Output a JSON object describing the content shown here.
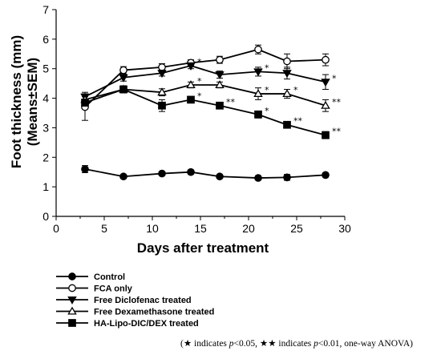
{
  "chart_data": {
    "type": "line",
    "xlabel": "Days after treatment",
    "ylabel_line1": "Foot thickness (mm)",
    "ylabel_line2": "(Means±SEM)",
    "xlim": [
      0,
      30
    ],
    "ylim": [
      0,
      7
    ],
    "xticks": [
      "0",
      "5",
      "10",
      "15",
      "20",
      "25",
      "30"
    ],
    "yticks": [
      "0",
      "1",
      "2",
      "3",
      "4",
      "5",
      "6",
      "7"
    ],
    "grid": false,
    "legend_position": "bottom-left",
    "x": [
      3,
      7,
      11,
      14,
      17,
      21,
      24,
      28
    ],
    "series": [
      {
        "name": "Control",
        "marker": "filled-circle",
        "values": [
          1.6,
          1.35,
          1.45,
          1.5,
          1.35,
          1.3,
          1.32,
          1.4
        ],
        "errors": [
          0.12,
          0.06,
          0.06,
          0.07,
          0.06,
          0.06,
          0.1,
          0.07
        ],
        "stars": [
          "",
          "",
          "",
          "",
          "",
          "",
          "",
          ""
        ]
      },
      {
        "name": "FCA only",
        "marker": "open-circle",
        "values": [
          3.7,
          4.95,
          5.05,
          5.2,
          5.3,
          5.65,
          5.25,
          5.3
        ],
        "errors": [
          0.45,
          0.12,
          0.12,
          0.1,
          0.12,
          0.15,
          0.25,
          0.2
        ],
        "stars": [
          "",
          "",
          "",
          "",
          "",
          "",
          "",
          ""
        ]
      },
      {
        "name": "Free Diclofenac treated",
        "marker": "filled-triangle-down",
        "values": [
          4.05,
          4.7,
          4.85,
          5.1,
          4.8,
          4.9,
          4.85,
          4.55
        ],
        "errors": [
          0.15,
          0.12,
          0.1,
          0.1,
          0.12,
          0.15,
          0.2,
          0.25
        ],
        "stars": [
          "",
          "",
          "",
          "*",
          "",
          "*",
          "",
          "*"
        ]
      },
      {
        "name": "Free Dexamethasone treated",
        "marker": "open-triangle-up",
        "values": [
          3.95,
          4.3,
          4.2,
          4.45,
          4.45,
          4.15,
          4.15,
          3.75
        ],
        "errors": [
          0.1,
          0.12,
          0.12,
          0.1,
          0.1,
          0.2,
          0.15,
          0.2
        ],
        "stars": [
          "",
          "",
          "",
          "*",
          "",
          "*",
          "*",
          "**"
        ]
      },
      {
        "name": "HA-Lipo-DIC/DEX treated",
        "marker": "filled-square",
        "values": [
          3.85,
          4.3,
          3.75,
          3.95,
          3.75,
          3.45,
          3.1,
          2.75
        ],
        "errors": [
          0.12,
          0.12,
          0.2,
          0.1,
          0.1,
          0.12,
          0.1,
          0.12
        ],
        "stars": [
          "",
          "",
          "",
          "*",
          "**",
          "*",
          "**",
          "**"
        ]
      }
    ]
  },
  "footnote": {
    "open": "(",
    "star1": "★",
    "t1": " indicates ",
    "p1": "p",
    "t2": "<0.05, ",
    "star2": "★★",
    "t3": " indicates ",
    "p2": "p",
    "t4": "<0.01, one-way ANOVA)"
  }
}
